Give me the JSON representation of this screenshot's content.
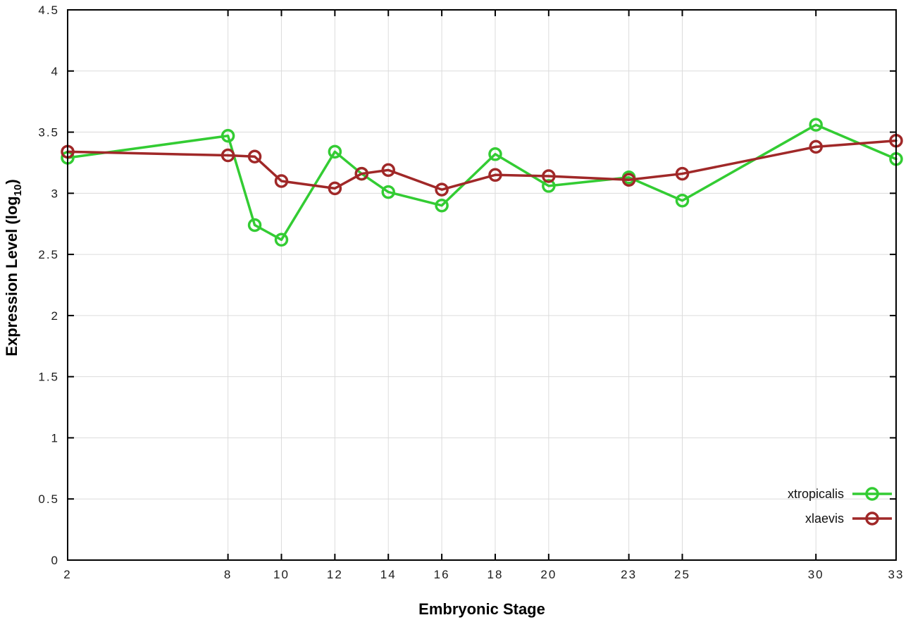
{
  "chart_data": {
    "type": "line",
    "title": "",
    "xlabel": "Embryonic Stage",
    "ylabel": "Expression Level (log10)",
    "ylabel_parts": {
      "pre": "Expression Level (log",
      "sub": "10",
      "post": ")"
    },
    "xlim": [
      2,
      33
    ],
    "ylim": [
      0,
      4.5
    ],
    "grid": true,
    "legend_position": "bottom-right-inside",
    "x_ticks": [
      2,
      8,
      10,
      12,
      14,
      16,
      18,
      20,
      23,
      25,
      30,
      33
    ],
    "x_tick_labels": [
      "2",
      "8",
      "10",
      "12",
      "14",
      "16",
      "18",
      "20",
      "23",
      "25",
      "30",
      "33"
    ],
    "y_ticks": [
      0,
      0.5,
      1,
      1.5,
      2,
      2.5,
      3,
      3.5,
      4,
      4.5
    ],
    "y_tick_labels": [
      "0",
      "0.5",
      "1",
      "1.5",
      "2",
      "2.5",
      "3",
      "3.5",
      "4",
      "4.5"
    ],
    "x": [
      2,
      8,
      9,
      10,
      12,
      13,
      14,
      16,
      18,
      20,
      23,
      25,
      30,
      33
    ],
    "series": [
      {
        "name": "xtropicalis",
        "color": "#33cc33",
        "marker": "open-circle",
        "values": [
          3.29,
          3.47,
          2.74,
          2.62,
          3.34,
          3.16,
          3.01,
          2.9,
          3.32,
          3.06,
          3.13,
          2.94,
          3.56,
          3.28
        ]
      },
      {
        "name": "xlaevis",
        "color": "#a02828",
        "marker": "open-circle",
        "values": [
          3.34,
          3.31,
          3.3,
          3.1,
          3.04,
          3.16,
          3.19,
          3.03,
          3.15,
          3.14,
          3.11,
          3.16,
          3.38,
          3.43
        ]
      }
    ]
  },
  "colors": {
    "background": "#ffffff",
    "grid": "#dcdcdc",
    "axis": "#000000",
    "tick_text": "#1c1c1c"
  }
}
